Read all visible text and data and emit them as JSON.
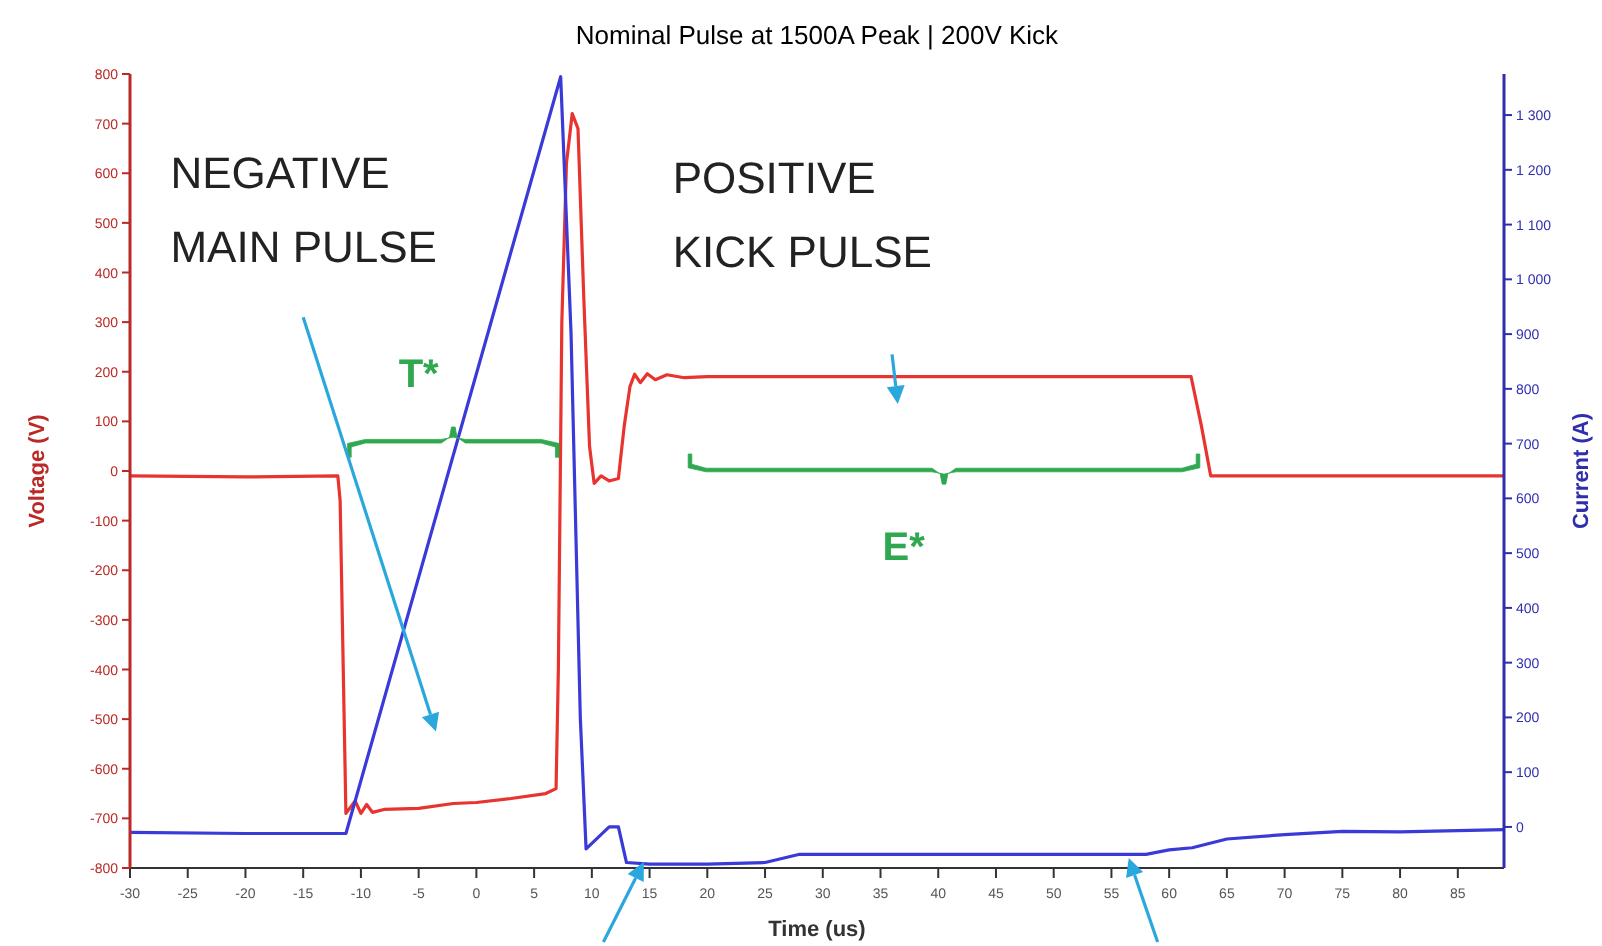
{
  "chart_data": {
    "type": "line",
    "title": "Nominal Pulse at 1500A Peak | 200V Kick",
    "xlabel": "Time (us)",
    "ylabel": "Voltage (V)",
    "y2label": "Current (A)",
    "annotations": [
      "NEGATIVE MAIN PULSE",
      "POSITIVE KICK PULSE",
      "T*",
      "E*"
    ],
    "xlim": [
      -30,
      89
    ],
    "xticks": [
      -30,
      -25,
      -20,
      -15,
      -10,
      -5,
      0,
      5,
      10,
      15,
      20,
      25,
      30,
      35,
      40,
      45,
      50,
      55,
      60,
      65,
      70,
      75,
      80,
      85
    ],
    "ylim": [
      -800,
      800
    ],
    "yticks": [
      -800,
      -700,
      -600,
      -500,
      -400,
      -300,
      -200,
      -100,
      0,
      100,
      200,
      300,
      400,
      500,
      600,
      700,
      800
    ],
    "y2lim": [
      -75,
      1375
    ],
    "y2ticks": [
      0,
      100,
      200,
      300,
      400,
      500,
      600,
      700,
      800,
      900,
      {
        "value": 1000,
        "label": "1 000"
      },
      {
        "value": 1100,
        "label": "1 100"
      },
      {
        "value": 1200,
        "label": "1 200"
      },
      {
        "value": 1300,
        "label": "1 300"
      }
    ],
    "grid": false,
    "marker": "none",
    "line_style": "solid",
    "series": [
      {
        "color": "#e8332f",
        "x": [
          -30,
          -20,
          -12,
          -11.8,
          -11.3,
          -10.5,
          -10,
          -9.5,
          -9,
          -8,
          -5,
          -2,
          0,
          3,
          6,
          6.9,
          7.1,
          7.4,
          7.8,
          8.3,
          8.8,
          9.3,
          9.8,
          10.2,
          10.8,
          11.5,
          12.3,
          12.8,
          13.3,
          13.7,
          14.2,
          14.8,
          15.5,
          16.5,
          18,
          20,
          30,
          40,
          50,
          60,
          61.9,
          62.8,
          63.6,
          70,
          80,
          89
        ],
        "values": [
          -10,
          -12,
          -10,
          -60,
          -690,
          -665,
          -690,
          -672,
          -688,
          -682,
          -680,
          -670,
          -668,
          -660,
          -650,
          -640,
          -400,
          300,
          620,
          720,
          690,
          350,
          50,
          -25,
          -10,
          -20,
          -15,
          90,
          170,
          195,
          178,
          196,
          184,
          194,
          188,
          190,
          190,
          190,
          190,
          190,
          190,
          90,
          -10,
          -10,
          -10,
          -10
        ]
      },
      {
        "color": "#3a3ad8",
        "axis": "y2",
        "x": [
          -30,
          -20,
          -11.3,
          7.3,
          8.2,
          9,
          9.5,
          10.5,
          11.5,
          12.3,
          13,
          15,
          20,
          25,
          27,
          28,
          40,
          50,
          58,
          60,
          62,
          65,
          70,
          75,
          80,
          89
        ],
        "values": [
          -10,
          -12,
          -12,
          1370,
          900,
          200,
          -40,
          -20,
          0,
          0,
          -65,
          -68,
          -68,
          -65,
          -55,
          -50,
          -50,
          -50,
          -50,
          -42,
          -38,
          -22,
          -14,
          -8,
          -9,
          -5
        ]
      }
    ]
  }
}
